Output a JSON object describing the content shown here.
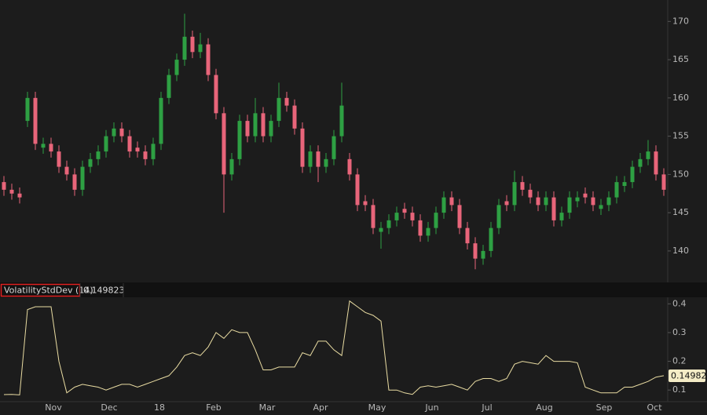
{
  "chart_data": [
    {
      "type": "candlestick",
      "open": [
        149,
        148,
        147.5,
        157,
        160,
        153.5,
        154,
        153,
        151,
        150,
        148,
        151,
        152,
        153,
        155,
        156,
        155,
        153.5,
        153,
        152,
        154,
        160,
        163,
        165,
        168,
        166,
        167,
        163,
        158,
        150,
        152,
        157,
        155,
        158,
        155,
        157,
        160,
        159,
        156,
        151,
        153,
        151,
        152,
        155,
        152,
        150,
        146.5,
        146,
        142.5,
        143,
        144,
        145.5,
        145,
        144,
        142,
        143,
        145,
        147,
        146,
        143,
        141,
        139,
        140,
        143,
        146.5,
        146,
        149,
        148,
        147,
        146,
        147,
        144,
        145,
        146.5,
        147.5,
        147,
        145.5,
        146,
        147,
        148.5,
        149,
        151,
        152,
        153,
        150
      ],
      "high": [
        149.8,
        148.8,
        148.3,
        160.8,
        160.8,
        154.8,
        154.8,
        153.8,
        151.8,
        150.8,
        151.8,
        152.8,
        153.8,
        155.8,
        156.8,
        156.8,
        155.8,
        154.3,
        153.8,
        154.8,
        160.8,
        163.8,
        165.8,
        171,
        168.8,
        168.5,
        167.8,
        163.8,
        158.8,
        152.8,
        157.8,
        157.8,
        160,
        158.8,
        157.8,
        162,
        160.8,
        159.8,
        156.8,
        153.8,
        153.8,
        152.8,
        155.8,
        162,
        152.8,
        150.8,
        147.3,
        146.8,
        143.8,
        144.8,
        145.8,
        146.3,
        145.8,
        144.8,
        143.8,
        145.8,
        147.8,
        147.8,
        146.8,
        143.8,
        141.8,
        140.8,
        143.8,
        146.8,
        147.3,
        150.5,
        149.8,
        148.8,
        147.8,
        147.8,
        147.8,
        145.8,
        147.8,
        147.8,
        148.3,
        147.8,
        146.8,
        147.8,
        149.8,
        149.8,
        151.8,
        152.8,
        154.5,
        153.8,
        150.8
      ],
      "low": [
        147.2,
        146.7,
        146.2,
        156.2,
        153.2,
        152.7,
        152.2,
        150.2,
        149.2,
        147.2,
        147.2,
        150.2,
        151.2,
        152.2,
        154.2,
        154.2,
        152.2,
        152.2,
        151.2,
        151.2,
        153.2,
        159.2,
        162.2,
        164.2,
        165.2,
        165.2,
        162.2,
        157.2,
        145,
        149.2,
        151.2,
        154.2,
        154.2,
        154.2,
        154.2,
        156.2,
        158.2,
        155.2,
        150.2,
        150.2,
        149,
        150.2,
        151.2,
        154.2,
        149.2,
        145.2,
        145.2,
        142.2,
        140.3,
        142.2,
        143.2,
        144.2,
        143.2,
        141.2,
        141.2,
        142.2,
        144.2,
        145.2,
        142.2,
        140.2,
        137.6,
        138.2,
        139.2,
        142.2,
        145.2,
        145.2,
        147.2,
        146.2,
        145.2,
        145.2,
        143.2,
        143.2,
        144.2,
        145.7,
        146.2,
        145.2,
        144.7,
        145.2,
        146.2,
        147.7,
        148.2,
        150.2,
        151.2,
        149.2,
        147.2
      ],
      "close": [
        148,
        147.5,
        147,
        160,
        154,
        154,
        153,
        151,
        150,
        148,
        151,
        152,
        153,
        155,
        156,
        155,
        153,
        153,
        152,
        154,
        160,
        163,
        165,
        168,
        166,
        167,
        163,
        158,
        150,
        152,
        157,
        155,
        158,
        155,
        157,
        160,
        159,
        156,
        151,
        153,
        151,
        152,
        155,
        159,
        150,
        146,
        146,
        143,
        143,
        144,
        145,
        145,
        144,
        142,
        143,
        145,
        147,
        146,
        143,
        141,
        139,
        140,
        143,
        146,
        146,
        149,
        148,
        147,
        146,
        147,
        144,
        145,
        147,
        147,
        147,
        146,
        146,
        147,
        149,
        149,
        151,
        152,
        153,
        150,
        148
      ],
      "up_color": "#2ea043",
      "down_color": "#e8657a",
      "xlim": [
        -0.5,
        84.5
      ],
      "ylim": [
        136.4,
        172.8
      ],
      "yticks": [
        140,
        145,
        150,
        155,
        160,
        165,
        170
      ]
    },
    {
      "type": "line",
      "title": "VolatilityStdDev (14)",
      "current_value": 0.149823,
      "last_value": 0.14982,
      "color": "#e9dca2",
      "values": [
        0.084,
        0.085,
        0.083,
        0.38,
        0.39,
        0.39,
        0.39,
        0.2,
        0.09,
        0.11,
        0.12,
        0.115,
        0.11,
        0.1,
        0.11,
        0.12,
        0.12,
        0.11,
        0.12,
        0.13,
        0.14,
        0.15,
        0.18,
        0.22,
        0.23,
        0.22,
        0.25,
        0.3,
        0.28,
        0.31,
        0.3,
        0.3,
        0.24,
        0.17,
        0.17,
        0.18,
        0.18,
        0.18,
        0.23,
        0.22,
        0.27,
        0.27,
        0.24,
        0.22,
        0.41,
        0.39,
        0.37,
        0.36,
        0.34,
        0.1,
        0.1,
        0.09,
        0.085,
        0.11,
        0.115,
        0.11,
        0.115,
        0.12,
        0.11,
        0.1,
        0.13,
        0.14,
        0.14,
        0.13,
        0.14,
        0.19,
        0.2,
        0.195,
        0.19,
        0.22,
        0.2,
        0.2,
        0.2,
        0.195,
        0.11,
        0.1,
        0.09,
        0.09,
        0.09,
        0.11,
        0.11,
        0.12,
        0.13,
        0.145,
        0.14982
      ],
      "xlim": [
        -0.5,
        84.5
      ],
      "ylim": [
        0.065,
        0.42
      ],
      "yticks": [
        0.1,
        0.2,
        0.3,
        0.4
      ],
      "xticks": [
        {
          "value": 6.3,
          "label": "Nov"
        },
        {
          "value": 13.4,
          "label": "Dec"
        },
        {
          "value": 19.8,
          "label": "18"
        },
        {
          "value": 26.7,
          "label": "Feb"
        },
        {
          "value": 33.5,
          "label": "Mar"
        },
        {
          "value": 40.3,
          "label": "Apr"
        },
        {
          "value": 47.5,
          "label": "May"
        },
        {
          "value": 54.5,
          "label": "Jun"
        },
        {
          "value": 61.5,
          "label": "Jul"
        },
        {
          "value": 68.8,
          "label": "Aug"
        },
        {
          "value": 76.4,
          "label": "Sep"
        },
        {
          "value": 82.8,
          "label": "Oct"
        }
      ]
    }
  ]
}
